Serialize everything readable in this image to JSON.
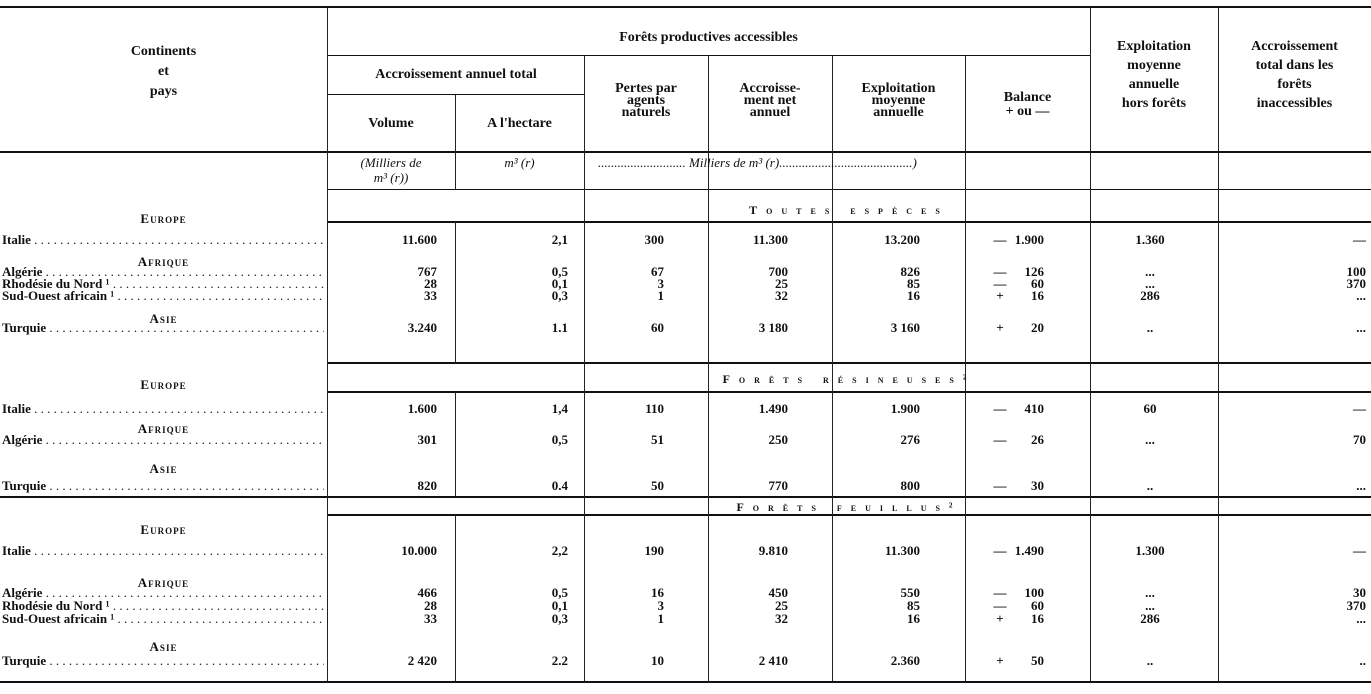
{
  "header": {
    "col_country": [
      "Continents",
      "et",
      "pays"
    ],
    "group_title": "Forêts productives accessibles",
    "subgroup_title": "Accroissement annuel total",
    "volume": "Volume",
    "hectare": "A l'hectare",
    "pertes": [
      "Pertes par",
      "agents",
      "naturels"
    ],
    "accr_net": [
      "Accroisse-",
      "ment net",
      "annuel"
    ],
    "exploitation": [
      "Exploitation",
      "moyenne",
      "annuelle"
    ],
    "balance": [
      "Balance",
      "+ ou —"
    ],
    "hors_forets": [
      "Exploitation",
      "moyenne",
      "annuelle",
      "hors forêts"
    ],
    "inaccessibles": [
      "Accroissement",
      "total dans les",
      "forêts",
      "inaccessibles"
    ]
  },
  "units": {
    "volume": [
      "(Milliers de",
      "m³ (r))"
    ],
    "hectare": "m³ (r)",
    "rest": "........................... Milliers de m³ (r).........................................)"
  },
  "sections": [
    {
      "title": "Toutes espèces",
      "groups": [
        {
          "continent": "Europe",
          "rows": [
            {
              "country": "Italie",
              "values": [
                "11.600",
                "2,1",
                "300",
                "11.300",
                "13.200"
              ],
              "balance_sign": "—",
              "balance": "1.900",
              "hors": "1.360",
              "inacc": "—"
            }
          ]
        },
        {
          "continent": "Afrique",
          "rows": [
            {
              "country": "Algérie",
              "values": [
                "767",
                "0,5",
                "67",
                "700",
                "826"
              ],
              "balance_sign": "—",
              "balance": "126",
              "hors": "...",
              "inacc": "100"
            },
            {
              "country": "Rhodésie du Nord ¹",
              "values": [
                "28",
                "0,1",
                "3",
                "25",
                "85"
              ],
              "balance_sign": "—",
              "balance": "60",
              "hors": "...",
              "inacc": "370"
            },
            {
              "country": "Sud-Ouest africain ¹",
              "values": [
                "33",
                "0,3",
                "1",
                "32",
                "16"
              ],
              "balance_sign": "+",
              "balance": "16",
              "hors": "286",
              "inacc": "..."
            }
          ]
        },
        {
          "continent": "Asie",
          "rows": [
            {
              "country": "Turquie",
              "values": [
                "3.240",
                "1.1",
                "60",
                "3 180",
                "3 160"
              ],
              "balance_sign": "+",
              "balance": "20",
              "hors": "..",
              "inacc": "..."
            }
          ]
        }
      ]
    },
    {
      "title": "Forêts résineuses²",
      "groups": [
        {
          "continent": "Europe",
          "rows": [
            {
              "country": "Italie",
              "values": [
                "1.600",
                "1,4",
                "110",
                "1.490",
                "1.900"
              ],
              "balance_sign": "—",
              "balance": "410",
              "hors": "60",
              "inacc": "—"
            }
          ]
        },
        {
          "continent": "Afrique",
          "rows": [
            {
              "country": "Algérie",
              "values": [
                "301",
                "0,5",
                "51",
                "250",
                "276"
              ],
              "balance_sign": "—",
              "balance": "26",
              "hors": "...",
              "inacc": "70"
            }
          ]
        },
        {
          "continent": "Asie",
          "rows": [
            {
              "country": "Turquie",
              "values": [
                "820",
                "0.4",
                "50",
                "770",
                "800"
              ],
              "balance_sign": "—",
              "balance": "30",
              "hors": "..",
              "inacc": "..."
            }
          ]
        }
      ]
    },
    {
      "title": "Forêts feuillus²",
      "groups": [
        {
          "continent": "Europe",
          "rows": [
            {
              "country": "Italie",
              "values": [
                "10.000",
                "2,2",
                "190",
                "9.810",
                "11.300"
              ],
              "balance_sign": "—",
              "balance": "1.490",
              "hors": "1.300",
              "inacc": "—"
            }
          ]
        },
        {
          "continent": "Afrique",
          "rows": [
            {
              "country": "Algérie",
              "values": [
                "466",
                "0,5",
                "16",
                "450",
                "550"
              ],
              "balance_sign": "—",
              "balance": "100",
              "hors": "...",
              "inacc": "30"
            },
            {
              "country": "Rhodésie du Nord ¹",
              "values": [
                "28",
                "0,1",
                "3",
                "25",
                "85"
              ],
              "balance_sign": "—",
              "balance": "60",
              "hors": "...",
              "inacc": "370"
            },
            {
              "country": "Sud-Ouest africain ¹",
              "values": [
                "33",
                "0,3",
                "1",
                "32",
                "16"
              ],
              "balance_sign": "+",
              "balance": "16",
              "hors": "286",
              "inacc": "..."
            }
          ]
        },
        {
          "continent": "Asie",
          "rows": [
            {
              "country": "Turquie",
              "values": [
                "2 420",
                "2.2",
                "10",
                "2 410",
                "2.360"
              ],
              "balance_sign": "+",
              "balance": "50",
              "hors": "..",
              "inacc": ".."
            }
          ]
        }
      ]
    }
  ]
}
